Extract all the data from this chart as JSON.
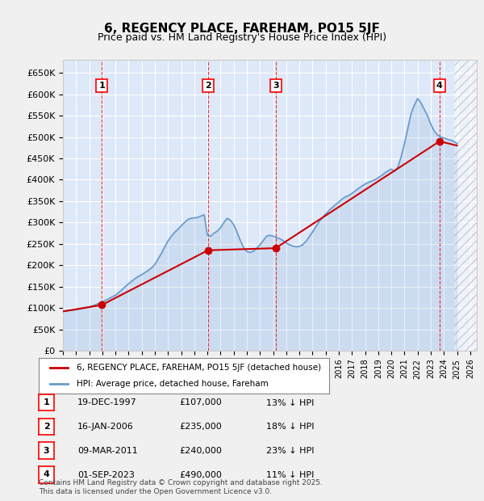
{
  "title": "6, REGENCY PLACE, FAREHAM, PO15 5JF",
  "subtitle": "Price paid vs. HM Land Registry's House Price Index (HPI)",
  "ylabel_ticks": [
    "£0",
    "£50K",
    "£100K",
    "£150K",
    "£200K",
    "£250K",
    "£300K",
    "£350K",
    "£400K",
    "£450K",
    "£500K",
    "£550K",
    "£600K",
    "£650K"
  ],
  "ytick_values": [
    0,
    50000,
    100000,
    150000,
    200000,
    250000,
    300000,
    350000,
    400000,
    450000,
    500000,
    550000,
    600000,
    650000
  ],
  "ylim": [
    0,
    680000
  ],
  "xlim_start": 1995.0,
  "xlim_end": 2026.5,
  "background_color": "#dde8f8",
  "plot_bg_color": "#dde8f8",
  "grid_color": "#ffffff",
  "hpi_color": "#6699cc",
  "price_color": "#cc0000",
  "legend_label_red": "6, REGENCY PLACE, FAREHAM, PO15 5JF (detached house)",
  "legend_label_blue": "HPI: Average price, detached house, Fareham",
  "footer": "Contains HM Land Registry data © Crown copyright and database right 2025.\nThis data is licensed under the Open Government Licence v3.0.",
  "transactions": [
    {
      "num": 1,
      "date": "19-DEC-1997",
      "price": 107000,
      "pct": "13%",
      "x_year": 1997.96
    },
    {
      "num": 2,
      "date": "16-JAN-2006",
      "price": 235000,
      "pct": "18%",
      "x_year": 2006.04
    },
    {
      "num": 3,
      "date": "09-MAR-2011",
      "price": 240000,
      "pct": "23%",
      "x_year": 2011.19
    },
    {
      "num": 4,
      "date": "01-SEP-2023",
      "price": 490000,
      "pct": "11%",
      "x_year": 2023.67
    }
  ],
  "hpi_data_x": [
    1995.0,
    1995.25,
    1995.5,
    1995.75,
    1996.0,
    1996.25,
    1996.5,
    1996.75,
    1997.0,
    1997.25,
    1997.5,
    1997.75,
    1998.0,
    1998.25,
    1998.5,
    1998.75,
    1999.0,
    1999.25,
    1999.5,
    1999.75,
    2000.0,
    2000.25,
    2000.5,
    2000.75,
    2001.0,
    2001.25,
    2001.5,
    2001.75,
    2002.0,
    2002.25,
    2002.5,
    2002.75,
    2003.0,
    2003.25,
    2003.5,
    2003.75,
    2004.0,
    2004.25,
    2004.5,
    2004.75,
    2005.0,
    2005.25,
    2005.5,
    2005.75,
    2006.0,
    2006.25,
    2006.5,
    2006.75,
    2007.0,
    2007.25,
    2007.5,
    2007.75,
    2008.0,
    2008.25,
    2008.5,
    2008.75,
    2009.0,
    2009.25,
    2009.5,
    2009.75,
    2010.0,
    2010.25,
    2010.5,
    2010.75,
    2011.0,
    2011.25,
    2011.5,
    2011.75,
    2012.0,
    2012.25,
    2012.5,
    2012.75,
    2013.0,
    2013.25,
    2013.5,
    2013.75,
    2014.0,
    2014.25,
    2014.5,
    2014.75,
    2015.0,
    2015.25,
    2015.5,
    2015.75,
    2016.0,
    2016.25,
    2016.5,
    2016.75,
    2017.0,
    2017.25,
    2017.5,
    2017.75,
    2018.0,
    2018.25,
    2018.5,
    2018.75,
    2019.0,
    2019.25,
    2019.5,
    2019.75,
    2020.0,
    2020.25,
    2020.5,
    2020.75,
    2021.0,
    2021.25,
    2021.5,
    2021.75,
    2022.0,
    2022.25,
    2022.5,
    2022.75,
    2023.0,
    2023.25,
    2023.5,
    2023.75,
    2024.0,
    2024.25,
    2024.5,
    2024.75,
    2025.0
  ],
  "hpi_data_y": [
    92000,
    93000,
    94000,
    95000,
    96000,
    97500,
    99000,
    100500,
    102000,
    105000,
    108000,
    111000,
    114000,
    118000,
    122000,
    126000,
    130000,
    136000,
    143000,
    150000,
    157000,
    163000,
    169000,
    174000,
    178000,
    183000,
    188000,
    194000,
    202000,
    215000,
    228000,
    243000,
    257000,
    268000,
    277000,
    284000,
    292000,
    300000,
    307000,
    310000,
    311000,
    312000,
    315000,
    318000,
    270000,
    268000,
    275000,
    280000,
    288000,
    300000,
    310000,
    305000,
    295000,
    278000,
    258000,
    242000,
    232000,
    230000,
    233000,
    240000,
    248000,
    258000,
    268000,
    270000,
    268000,
    265000,
    262000,
    258000,
    252000,
    248000,
    245000,
    243000,
    244000,
    248000,
    256000,
    267000,
    278000,
    290000,
    302000,
    312000,
    320000,
    328000,
    335000,
    342000,
    348000,
    355000,
    360000,
    363000,
    368000,
    374000,
    380000,
    385000,
    390000,
    394000,
    397000,
    400000,
    405000,
    410000,
    416000,
    421000,
    425000,
    420000,
    430000,
    455000,
    485000,
    520000,
    555000,
    575000,
    590000,
    580000,
    565000,
    550000,
    530000,
    515000,
    505000,
    500000,
    498000,
    495000,
    493000,
    490000,
    485000
  ],
  "price_data_x": [
    1995.0,
    1997.96,
    2006.04,
    2011.19,
    2023.67,
    2025.0
  ],
  "price_data_y": [
    92000,
    107000,
    235000,
    240000,
    490000,
    480000
  ]
}
